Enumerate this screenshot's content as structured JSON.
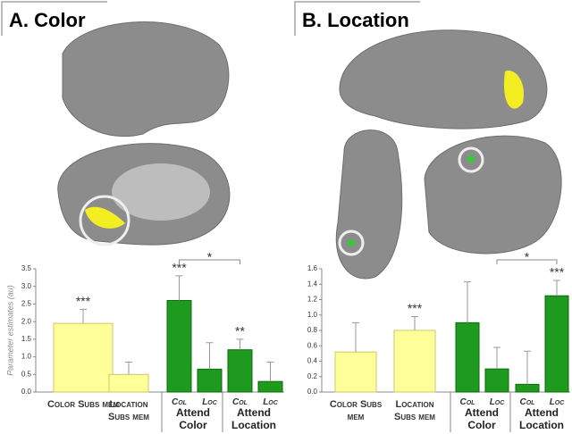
{
  "chart_data": [
    {
      "type": "bar",
      "title": "A. Color",
      "ylabel": "Parameter estimates (au)",
      "categories": [
        "Color Subs mem",
        "Location Subs mem",
        "Col",
        "Loc",
        "Col",
        "Loc"
      ],
      "groups": [
        "Attend Color",
        "Attend Location"
      ],
      "values": [
        1.95,
        0.5,
        2.6,
        0.65,
        1.2,
        0.3
      ],
      "errors": [
        0.4,
        0.35,
        0.7,
        0.75,
        0.3,
        0.55
      ],
      "colors": [
        "#ffff99",
        "#ffff99",
        "#1e9a1e",
        "#1e9a1e",
        "#1e9a1e",
        "#1e9a1e"
      ],
      "star_labels": [
        "***",
        null,
        "***",
        null,
        "**",
        null
      ],
      "comparison_label": "*",
      "ylim": [
        0,
        3.5
      ],
      "yticks": [
        {
          "value": 0,
          "label": "0.0"
        },
        0.5,
        {
          "value": 1,
          "label": "1.0"
        },
        1.5,
        {
          "value": 2,
          "label": "2.0"
        },
        2.5,
        {
          "value": 3,
          "label": "3.0"
        },
        3.5
      ]
    },
    {
      "type": "bar",
      "title": "B. Location",
      "categories": [
        "Color Subs mem",
        "Location Subs mem",
        "Col",
        "Loc",
        "Col",
        "Loc"
      ],
      "groups": [
        "Attend Color",
        "Attend Location"
      ],
      "values": [
        0.52,
        0.8,
        0.9,
        0.3,
        0.1,
        1.25
      ],
      "errors": [
        0.38,
        0.18,
        0.53,
        0.28,
        0.43,
        0.2
      ],
      "colors": [
        "#ffff99",
        "#ffff99",
        "#1e9a1e",
        "#1e9a1e",
        "#1e9a1e",
        "#1e9a1e"
      ],
      "star_labels": [
        null,
        "***",
        null,
        null,
        null,
        "***"
      ],
      "comparison_label": "*",
      "ylim": [
        0,
        1.6
      ],
      "yticks": [
        {
          "value": 0,
          "label": "0.0"
        },
        0.2,
        0.4,
        0.6,
        0.8,
        {
          "value": 1,
          "label": "1.0"
        },
        1.2,
        1.4,
        1.6
      ]
    }
  ]
}
